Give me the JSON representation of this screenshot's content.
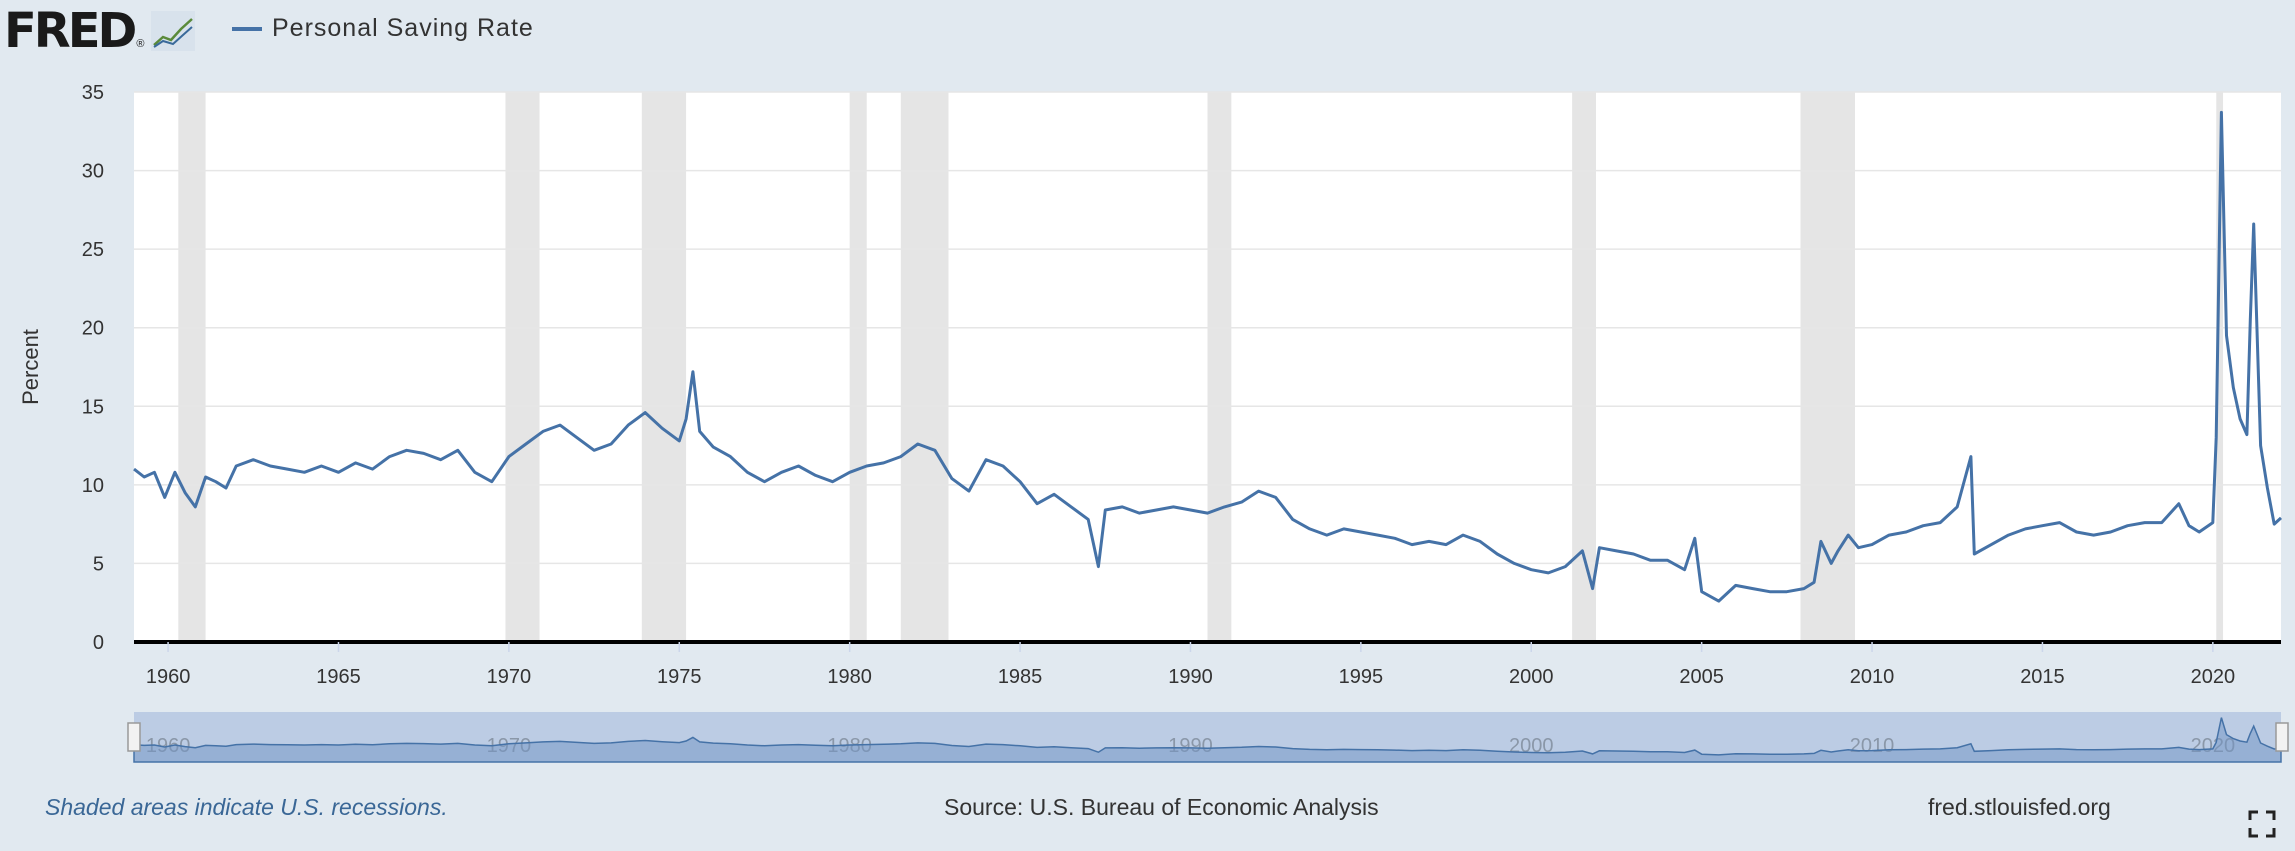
{
  "header": {
    "logo_text": "FRED",
    "logo_reg": "®",
    "legend_label": "Personal Saving Rate"
  },
  "colors": {
    "series": "#4572a7",
    "recession": "#e5e5e5",
    "background": "#e1e9f0",
    "navigator_fill": "#b8c9e2"
  },
  "footer": {
    "recession_note": "Shaded areas indicate U.S. recessions.",
    "source": "Source: U.S. Bureau of Economic Analysis",
    "url": "fred.stlouisfed.org"
  },
  "icons": [
    "fred-graph-icon",
    "fullscreen-icon"
  ],
  "chart_data": {
    "type": "line",
    "title": "",
    "xlabel": "",
    "ylabel": "Percent",
    "xlim": [
      1959.0,
      2022.0
    ],
    "ylim": [
      0,
      35
    ],
    "yticks": [
      0,
      5,
      10,
      15,
      20,
      25,
      30,
      35
    ],
    "xticks": [
      1960,
      1965,
      1970,
      1975,
      1980,
      1985,
      1990,
      1995,
      2000,
      2005,
      2010,
      2015,
      2020
    ],
    "grid": true,
    "legend": "top-left",
    "navigator_ticks": [
      "1960",
      "1970",
      "1980",
      "1990",
      "2000",
      "2010",
      "2020"
    ],
    "recessions": [
      [
        1960.3,
        1961.1
      ],
      [
        1969.9,
        1970.9
      ],
      [
        1973.9,
        1975.2
      ],
      [
        1980.0,
        1980.5
      ],
      [
        1981.5,
        1982.9
      ],
      [
        1990.5,
        1991.2
      ],
      [
        2001.2,
        2001.9
      ],
      [
        2007.9,
        2009.5
      ],
      [
        2020.1,
        2020.3
      ]
    ],
    "series": [
      {
        "name": "Personal Saving Rate",
        "x": [
          1959.0,
          1959.3,
          1959.6,
          1959.9,
          1960.2,
          1960.5,
          1960.8,
          1961.1,
          1961.4,
          1961.7,
          1962.0,
          1962.5,
          1963.0,
          1963.5,
          1964.0,
          1964.5,
          1965.0,
          1965.5,
          1966.0,
          1966.5,
          1967.0,
          1967.5,
          1968.0,
          1968.5,
          1969.0,
          1969.5,
          1970.0,
          1970.5,
          1971.0,
          1971.5,
          1972.0,
          1972.5,
          1973.0,
          1973.5,
          1974.0,
          1974.5,
          1975.0,
          1975.2,
          1975.4,
          1975.6,
          1976.0,
          1976.5,
          1977.0,
          1977.5,
          1978.0,
          1978.5,
          1979.0,
          1979.5,
          1980.0,
          1980.5,
          1981.0,
          1981.5,
          1982.0,
          1982.5,
          1983.0,
          1983.5,
          1984.0,
          1984.5,
          1985.0,
          1985.5,
          1986.0,
          1986.5,
          1987.0,
          1987.3,
          1987.5,
          1988.0,
          1988.5,
          1989.0,
          1989.5,
          1990.0,
          1990.5,
          1991.0,
          1991.5,
          1992.0,
          1992.5,
          1993.0,
          1993.5,
          1994.0,
          1994.5,
          1995.0,
          1995.5,
          1996.0,
          1996.5,
          1997.0,
          1997.5,
          1998.0,
          1998.5,
          1999.0,
          1999.5,
          2000.0,
          2000.5,
          2001.0,
          2001.5,
          2001.8,
          2002.0,
          2002.5,
          2003.0,
          2003.5,
          2004.0,
          2004.5,
          2004.8,
          2005.0,
          2005.5,
          2006.0,
          2006.5,
          2007.0,
          2007.5,
          2008.0,
          2008.3,
          2008.5,
          2008.8,
          2009.0,
          2009.3,
          2009.6,
          2010.0,
          2010.5,
          2011.0,
          2011.5,
          2012.0,
          2012.5,
          2012.9,
          2013.0,
          2013.5,
          2014.0,
          2014.5,
          2015.0,
          2015.5,
          2016.0,
          2016.5,
          2017.0,
          2017.5,
          2018.0,
          2018.5,
          2019.0,
          2019.3,
          2019.6,
          2020.0,
          2020.1,
          2020.25,
          2020.4,
          2020.6,
          2020.8,
          2021.0,
          2021.1,
          2021.2,
          2021.4,
          2021.6,
          2021.8,
          2022.0
        ],
        "values": [
          11.0,
          10.5,
          10.8,
          9.2,
          10.8,
          9.5,
          8.6,
          10.5,
          10.2,
          9.8,
          11.2,
          11.6,
          11.2,
          11.0,
          10.8,
          11.2,
          10.8,
          11.4,
          11.0,
          11.8,
          12.2,
          12.0,
          11.6,
          12.2,
          10.8,
          10.2,
          11.8,
          12.6,
          13.4,
          13.8,
          13.0,
          12.2,
          12.6,
          13.8,
          14.6,
          13.6,
          12.8,
          14.2,
          17.2,
          13.4,
          12.4,
          11.8,
          10.8,
          10.2,
          10.8,
          11.2,
          10.6,
          10.2,
          10.8,
          11.2,
          11.4,
          11.8,
          12.6,
          12.2,
          10.4,
          9.6,
          11.6,
          11.2,
          10.2,
          8.8,
          9.4,
          8.6,
          7.8,
          4.8,
          8.4,
          8.6,
          8.2,
          8.4,
          8.6,
          8.4,
          8.2,
          8.6,
          8.9,
          9.6,
          9.2,
          7.8,
          7.2,
          6.8,
          7.2,
          7.0,
          6.8,
          6.6,
          6.2,
          6.4,
          6.2,
          6.8,
          6.4,
          5.6,
          5.0,
          4.6,
          4.4,
          4.8,
          5.8,
          3.4,
          6.0,
          5.8,
          5.6,
          5.2,
          5.2,
          4.6,
          6.6,
          3.2,
          2.6,
          3.6,
          3.4,
          3.2,
          3.2,
          3.4,
          3.8,
          6.4,
          5.0,
          5.8,
          6.8,
          6.0,
          6.2,
          6.8,
          7.0,
          7.4,
          7.6,
          8.6,
          11.8,
          5.6,
          6.2,
          6.8,
          7.2,
          7.4,
          7.6,
          7.0,
          6.8,
          7.0,
          7.4,
          7.6,
          7.6,
          8.8,
          7.4,
          7.0,
          7.6,
          13.0,
          33.7,
          19.5,
          16.2,
          14.2,
          13.2,
          20.5,
          26.6,
          12.5,
          9.8,
          7.5,
          7.9
        ]
      }
    ]
  }
}
